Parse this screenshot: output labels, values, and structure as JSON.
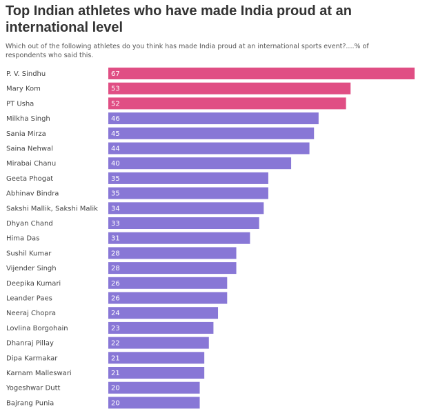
{
  "chart_data": {
    "type": "bar",
    "orientation": "horizontal",
    "title": "Top Indian athletes who have made India proud at an international level",
    "subtitle": "Which out of the following athletes do you think has made India proud at an international sports event?....% of respondents who said this.",
    "categories": [
      "P. V. Sindhu",
      "Mary Kom",
      "PT Usha",
      "Milkha Singh",
      "Sania Mirza",
      "Saina Nehwal",
      "Mirabai Chanu",
      "Geeta Phogat",
      "Abhinav Bindra",
      "Sakshi Mallik, Sakshi Malik",
      "Dhyan Chand",
      "Hima Das",
      "Sushil Kumar",
      "Vijender Singh",
      "Deepika Kumari",
      "Leander Paes",
      "Neeraj Chopra",
      "Lovlina Borgohain",
      "Dhanraj Pillay",
      "Dipa Karmakar",
      "Karnam Malleswari",
      "Yogeshwar Dutt",
      "Bajrang Punia"
    ],
    "values": [
      67,
      53,
      52,
      46,
      45,
      44,
      40,
      35,
      35,
      34,
      33,
      31,
      28,
      28,
      26,
      26,
      24,
      23,
      22,
      21,
      21,
      20,
      20
    ],
    "highlighted": [
      true,
      true,
      true,
      false,
      false,
      false,
      false,
      false,
      false,
      false,
      false,
      false,
      false,
      false,
      false,
      false,
      false,
      false,
      false,
      false,
      false,
      false,
      false
    ],
    "xlim": [
      0,
      67
    ],
    "grid": false,
    "legend": false
  },
  "colors": {
    "highlight": "#e04e84",
    "bar": "#8877d6",
    "value_label": "#ffffff",
    "category_label": "#444444"
  }
}
